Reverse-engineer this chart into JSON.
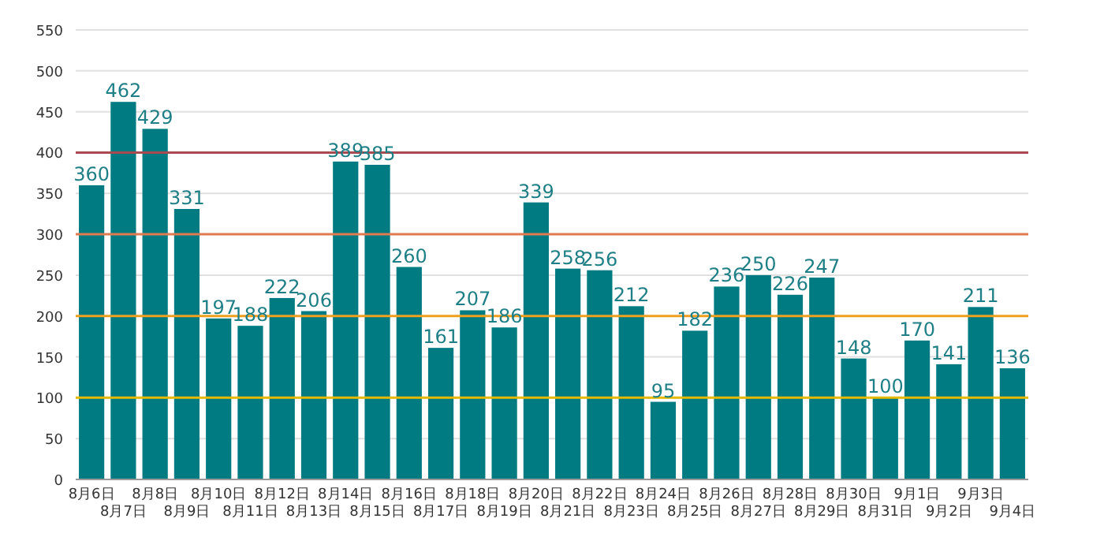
{
  "chart_data": {
    "type": "bar",
    "categories": [
      "8月6日",
      "8月7日",
      "8月8日",
      "8月9日",
      "8月10日",
      "8月11日",
      "8月12日",
      "8月13日",
      "8月14日",
      "8月15日",
      "8月16日",
      "8月17日",
      "8月18日",
      "8月19日",
      "8月20日",
      "8月21日",
      "8月22日",
      "8月23日",
      "8月24日",
      "8月25日",
      "8月26日",
      "8月27日",
      "8月28日",
      "8月29日",
      "8月30日",
      "8月31日",
      "9月1日",
      "9月2日",
      "9月3日",
      "9月4日"
    ],
    "values": [
      360,
      462,
      429,
      331,
      197,
      188,
      222,
      206,
      389,
      385,
      260,
      161,
      207,
      186,
      339,
      258,
      256,
      212,
      95,
      182,
      236,
      250,
      226,
      247,
      148,
      100,
      170,
      141,
      211,
      136
    ],
    "color": "#007b82",
    "data_labels": true,
    "ylim": [
      0,
      550
    ],
    "yticks": [
      0,
      50,
      100,
      150,
      200,
      250,
      300,
      350,
      400,
      450,
      500,
      550
    ],
    "grid": "y",
    "ref_lines": [
      {
        "axis": "y",
        "value": 100,
        "color": "#e6b800"
      },
      {
        "axis": "y",
        "value": 200,
        "color": "#f0a020"
      },
      {
        "axis": "y",
        "value": 300,
        "color": "#e07a50"
      },
      {
        "axis": "y",
        "value": 400,
        "color": "#a84a50"
      }
    ]
  }
}
